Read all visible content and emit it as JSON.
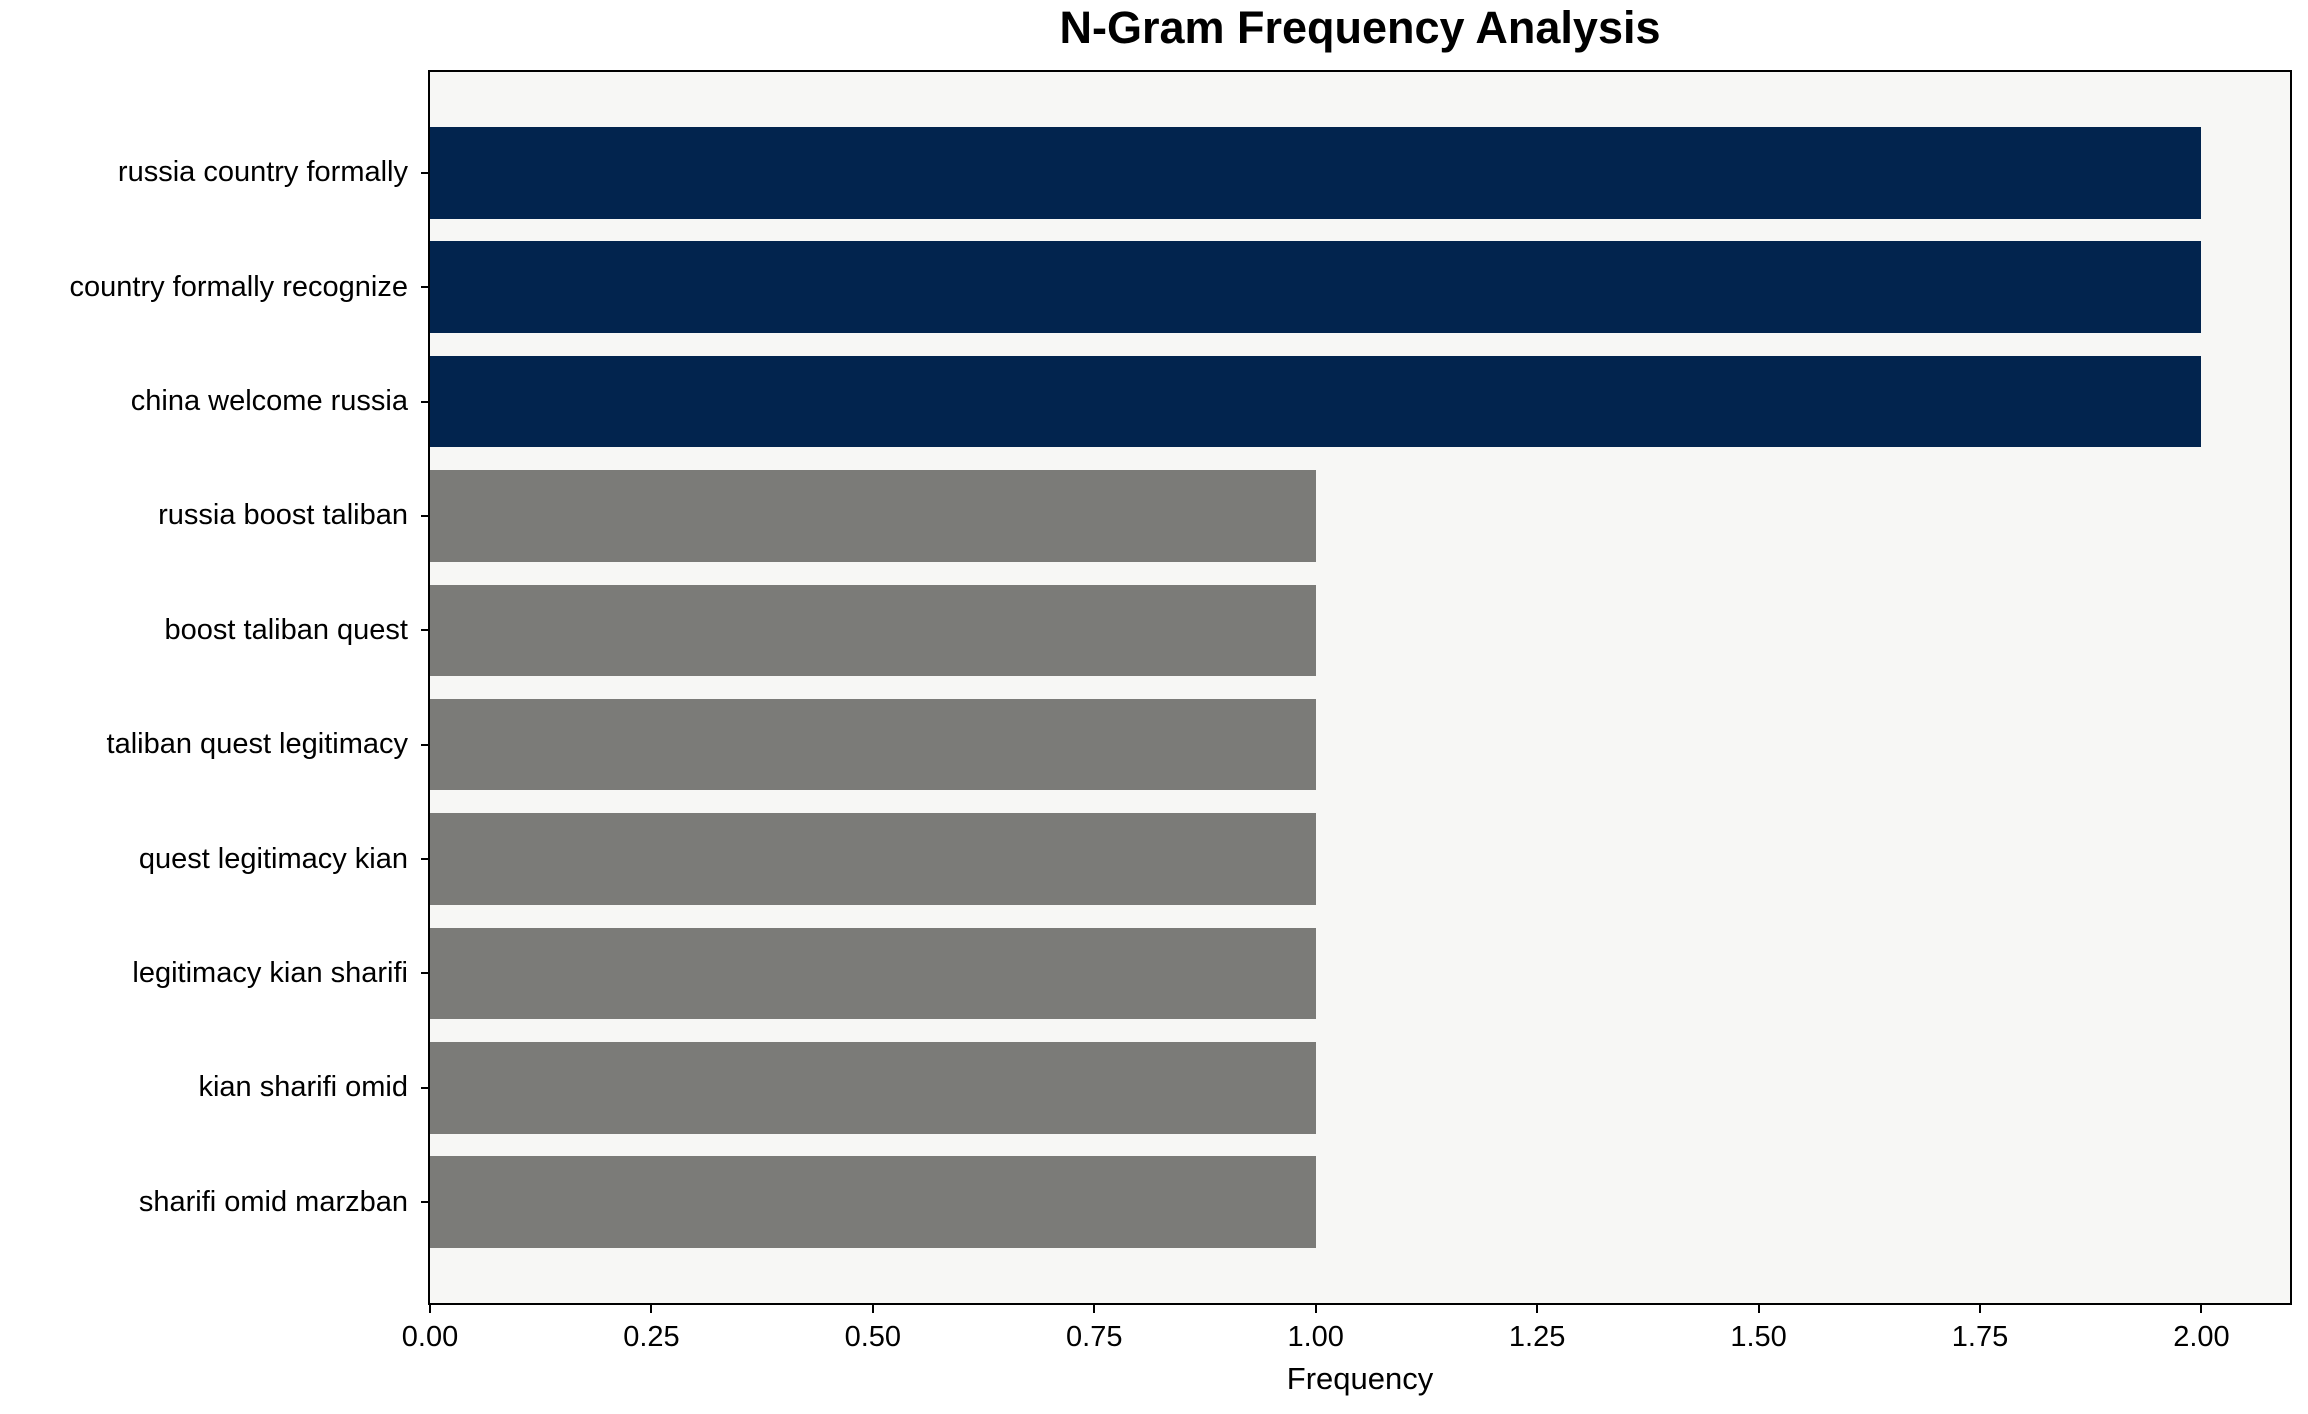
{
  "figure": {
    "background_color": "#ffffff",
    "plot_background_color": "#f7f7f5",
    "axis_color": "#000000"
  },
  "colors": {
    "navy_bar": "#02244e",
    "gray_bar": "#7b7b78"
  },
  "chart_data": {
    "type": "bar",
    "orientation": "horizontal",
    "title": "N-Gram Frequency Analysis",
    "xlabel": "Frequency",
    "ylabel": "",
    "categories": [
      "russia country formally",
      "country formally recognize",
      "china welcome russia",
      "russia boost taliban",
      "boost taliban quest",
      "taliban quest legitimacy",
      "quest legitimacy kian",
      "legitimacy kian sharifi",
      "kian sharifi omid",
      "sharifi omid marzban"
    ],
    "values": [
      2,
      2,
      2,
      1,
      1,
      1,
      1,
      1,
      1,
      1
    ],
    "bar_colors": [
      "#02244e",
      "#02244e",
      "#02244e",
      "#7b7b78",
      "#7b7b78",
      "#7b7b78",
      "#7b7b78",
      "#7b7b78",
      "#7b7b78",
      "#7b7b78"
    ],
    "xlim": [
      0,
      2.1
    ],
    "x_ticks": [
      "0.00",
      "0.25",
      "0.50",
      "0.75",
      "1.00",
      "1.25",
      "1.50",
      "1.75",
      "2.00"
    ],
    "x_tick_values": [
      0,
      0.25,
      0.5,
      0.75,
      1.0,
      1.25,
      1.5,
      1.75,
      2.0
    ],
    "grid": false,
    "legend": null,
    "bar_height_fraction": 0.8
  }
}
